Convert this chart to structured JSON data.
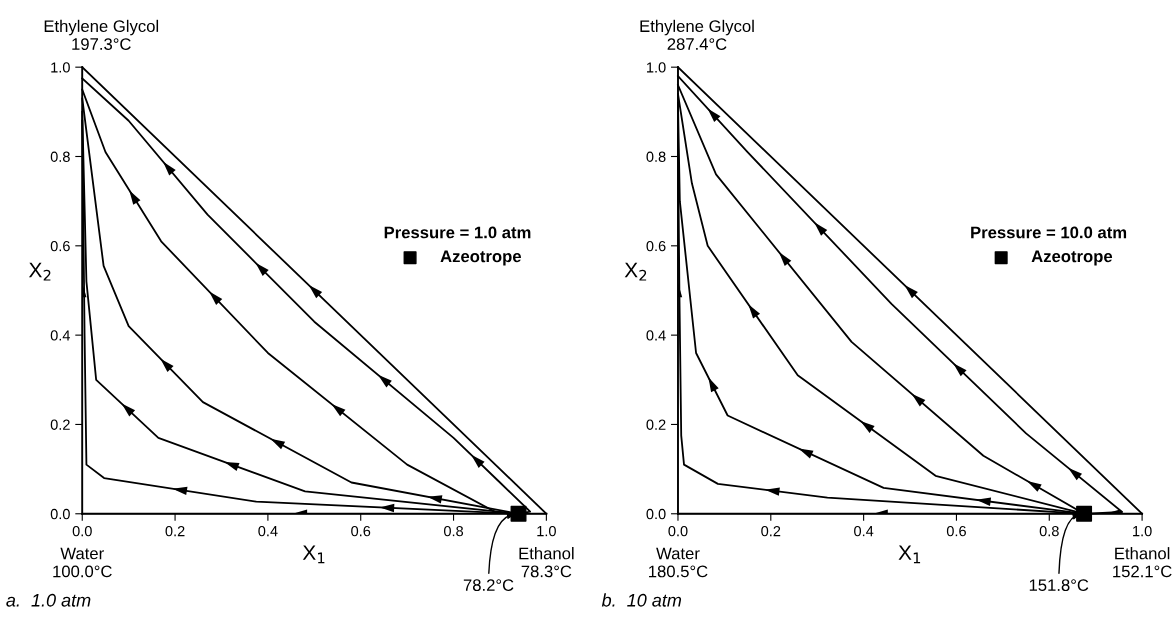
{
  "chart_data": [
    {
      "type": "line",
      "title": "a.  1.0 atm",
      "xlabel": "X$_{1}$",
      "ylabel": "X$_{2}$",
      "legend_title": "Pressure = 1.0 atm",
      "legend": "right",
      "grid": false,
      "marker": "none",
      "line_style": "solid",
      "xlim": [
        0,
        1
      ],
      "ylim": [
        0,
        1
      ],
      "xticks": [
        {
          "value": 0,
          "label": "0.0"
        },
        {
          "value": 0.2,
          "label": "0.2"
        },
        {
          "value": 0.4,
          "label": "0.4"
        },
        {
          "value": 0.6,
          "label": "0.6"
        },
        {
          "value": 0.8,
          "label": "0.8"
        },
        {
          "value": 1,
          "label": "1.0"
        }
      ],
      "yticks": [
        {
          "value": 0,
          "label": "0.0"
        },
        {
          "value": 0.2,
          "label": "0.2"
        },
        {
          "value": 0.4,
          "label": "0.4"
        },
        {
          "value": 0.6,
          "label": "0.6"
        },
        {
          "value": 0.8,
          "label": "0.8"
        },
        {
          "value": 1,
          "label": "1.0"
        }
      ],
      "series": [
        {
          "color": "#000000",
          "x": [
            0,
            0
          ],
          "values": [
            1,
            0
          ]
        },
        {
          "color": "#000000",
          "x": [
            0,
            1
          ],
          "values": [
            1,
            0
          ]
        },
        {
          "color": "#000000",
          "x": [
            0,
            0.94,
            1
          ],
          "values": [
            0,
            0,
            0
          ]
        },
        {
          "color": "#000000",
          "x": [
            0,
            0.1,
            0.27,
            0.5,
            0.8,
            0.9,
            0.965,
            0.94
          ],
          "values": [
            0.975,
            0.88,
            0.67,
            0.43,
            0.17,
            0.07,
            0.005,
            0
          ]
        },
        {
          "color": "#000000",
          "x": [
            0,
            0.05,
            0.17,
            0.4,
            0.7,
            0.89,
            0.94
          ],
          "values": [
            0.95,
            0.81,
            0.61,
            0.36,
            0.11,
            0.004,
            0
          ]
        },
        {
          "color": "#000000",
          "x": [
            0,
            0.046,
            0.1,
            0.26,
            0.58,
            0.94
          ],
          "values": [
            0.93,
            0.555,
            0.42,
            0.25,
            0.07,
            0
          ]
        },
        {
          "color": "#000000",
          "x": [
            0,
            0.009,
            0.03,
            0.164,
            0.48,
            0.94
          ],
          "values": [
            0.9,
            0.52,
            0.3,
            0.17,
            0.05,
            0
          ]
        },
        {
          "color": "#000000",
          "x": [
            0,
            0.005,
            0.009,
            0.047,
            0.375,
            0.94
          ],
          "values": [
            0.88,
            0.4,
            0.11,
            0.08,
            0.027,
            0
          ]
        },
        {
          "type": "scatter",
          "name": "Azeotrope",
          "color": "#000000",
          "marker": "square",
          "x": [
            0.94
          ],
          "values": [
            0
          ]
        }
      ],
      "annotations": [
        {
          "text": "Ethylene Glycol\n197.3°C",
          "x": 0,
          "y": 1
        },
        {
          "text": "Water\n100.0°C",
          "x": 0,
          "y": 0
        },
        {
          "text": "Ethanol\n78.3°C",
          "x": 1,
          "y": 0
        },
        {
          "text": "78.2°C",
          "x": 0.94,
          "y": 0
        }
      ]
    },
    {
      "type": "line",
      "title": "b.  10 atm",
      "xlabel": "X$_{1}$",
      "ylabel": "X$_{2}$",
      "legend_title": "Pressure = 10.0 atm",
      "legend": "right",
      "grid": false,
      "marker": "none",
      "line_style": "solid",
      "xlim": [
        0,
        1
      ],
      "ylim": [
        0,
        1
      ],
      "xticks": [
        {
          "value": 0,
          "label": "0.0"
        },
        {
          "value": 0.2,
          "label": "0.2"
        },
        {
          "value": 0.4,
          "label": "0.4"
        },
        {
          "value": 0.6,
          "label": "0.6"
        },
        {
          "value": 0.8,
          "label": "0.8"
        },
        {
          "value": 1,
          "label": "1.0"
        }
      ],
      "yticks": [
        {
          "value": 0,
          "label": "0.0"
        },
        {
          "value": 0.2,
          "label": "0.2"
        },
        {
          "value": 0.4,
          "label": "0.4"
        },
        {
          "value": 0.6,
          "label": "0.6"
        },
        {
          "value": 0.8,
          "label": "0.8"
        },
        {
          "value": 1,
          "label": "1.0"
        }
      ],
      "series": [
        {
          "color": "#000000",
          "x": [
            0,
            0
          ],
          "values": [
            1,
            0
          ]
        },
        {
          "color": "#000000",
          "x": [
            0,
            1
          ],
          "values": [
            1,
            0
          ]
        },
        {
          "color": "#000000",
          "x": [
            0,
            0.875,
            1
          ],
          "values": [
            0,
            0,
            0
          ]
        },
        {
          "color": "#000000",
          "x": [
            0,
            0.15,
            0.46,
            0.75,
            0.957,
            0.875
          ],
          "values": [
            0.98,
            0.81,
            0.47,
            0.18,
            0.004,
            0
          ]
        },
        {
          "color": "#000000",
          "x": [
            0,
            0.082,
            0.374,
            0.658,
            0.875
          ],
          "values": [
            0.96,
            0.76,
            0.385,
            0.13,
            0
          ]
        },
        {
          "color": "#000000",
          "x": [
            0,
            0.03,
            0.064,
            0.258,
            0.555,
            0.875
          ],
          "values": [
            0.94,
            0.74,
            0.6,
            0.31,
            0.085,
            0
          ]
        },
        {
          "color": "#000000",
          "x": [
            0,
            0.004,
            0.039,
            0.107,
            0.443,
            0.875
          ],
          "values": [
            0.92,
            0.7,
            0.36,
            0.22,
            0.058,
            0
          ]
        },
        {
          "color": "#000000",
          "x": [
            0,
            0.003,
            0.007,
            0.013,
            0.086,
            0.322,
            0.875
          ],
          "values": [
            0.85,
            0.5,
            0.175,
            0.11,
            0.067,
            0.036,
            0
          ]
        },
        {
          "type": "scatter",
          "name": "Azeotrope",
          "color": "#000000",
          "marker": "square",
          "x": [
            0.875
          ],
          "values": [
            0
          ]
        }
      ],
      "annotations": [
        {
          "text": "Ethylene Glycol\n287.4°C",
          "x": 0,
          "y": 1
        },
        {
          "text": "Water\n180.5°C",
          "x": 0,
          "y": 0
        },
        {
          "text": "Ethanol\n152.1°C",
          "x": 1,
          "y": 0
        },
        {
          "text": "151.8°C",
          "x": 0.875,
          "y": 0
        }
      ]
    }
  ]
}
